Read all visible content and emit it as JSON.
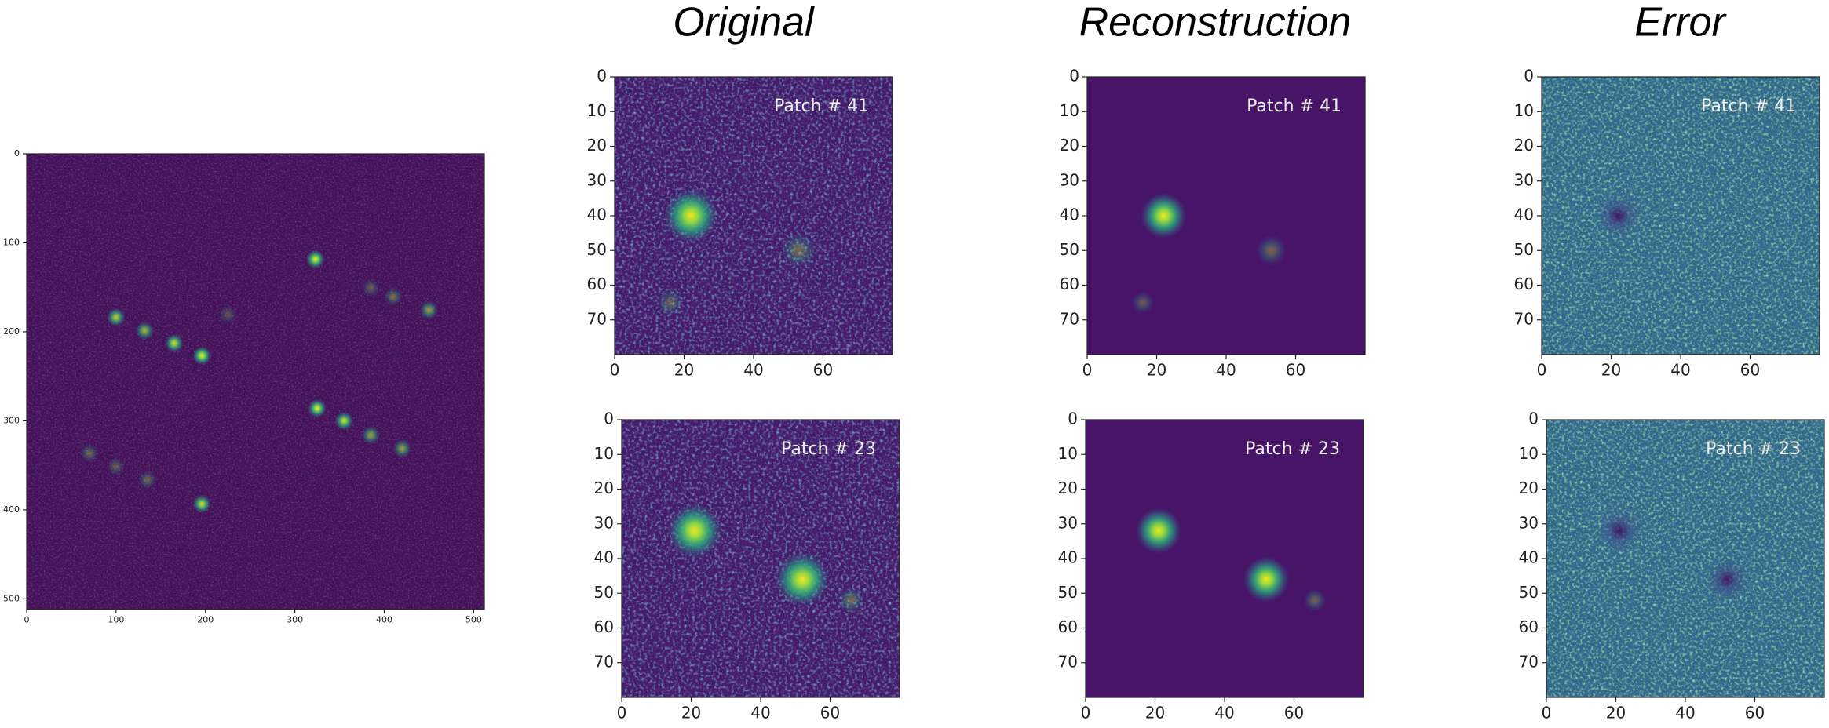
{
  "titles": [
    "Original",
    "Reconstruction",
    "Error"
  ],
  "overview": {
    "xlim": [
      0,
      512
    ],
    "ylim": [
      0,
      512
    ],
    "xticks": [
      0,
      100,
      200,
      300,
      400,
      500
    ],
    "yticks": [
      0,
      100,
      200,
      300,
      400,
      500
    ]
  },
  "patch_axes": {
    "xlim": [
      0,
      80
    ],
    "ylim": [
      0,
      80
    ],
    "xticks": [
      0,
      20,
      40,
      60
    ],
    "yticks": [
      0,
      10,
      20,
      30,
      40,
      50,
      60,
      70
    ]
  },
  "patches": [
    "Patch # 41",
    "Patch # 23"
  ]
}
